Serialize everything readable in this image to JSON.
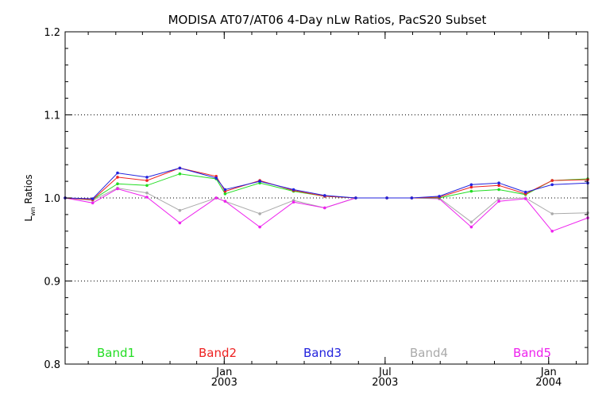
{
  "chart_data": {
    "type": "line",
    "title": "MODISA AT07/AT06 4-Day nLw Ratios, PacS20 Subset",
    "ylabel": "Lwn Ratios",
    "ylabel_main": "L",
    "ylabel_sub": "wn",
    "ylabel_rest": " Ratios",
    "xlabel": "",
    "ylim": [
      0.8,
      1.2
    ],
    "xlim": [
      "2002-07-06",
      "2004-02-14"
    ],
    "grid": "dotted horizontal",
    "y_ticks": [
      "0.8",
      "0.9",
      "1.0",
      "1.1",
      "1.2"
    ],
    "y_tick_values": [
      0.8,
      0.9,
      1.0,
      1.1,
      1.2
    ],
    "x_ticks": [
      {
        "date": "2003-01-01",
        "month": "Jan",
        "year": "2003"
      },
      {
        "date": "2003-07-01",
        "month": "Jul",
        "year": "2003"
      },
      {
        "date": "2004-01-01",
        "month": "Jan",
        "year": "2004"
      }
    ],
    "x": [
      "2002-07-06",
      "2002-08-06",
      "2002-09-03",
      "2002-10-06",
      "2002-11-12",
      "2002-12-23",
      "2003-01-02",
      "2003-02-10",
      "2003-03-20",
      "2003-04-24",
      "2003-05-29",
      "2003-07-03",
      "2003-07-31",
      "2003-08-31",
      "2003-10-06",
      "2003-11-06",
      "2003-12-06",
      "2004-01-05",
      "2004-02-14"
    ],
    "series": [
      {
        "name": "Band1",
        "color": "#22dd22",
        "values": [
          1.0,
          0.998,
          1.017,
          1.015,
          1.029,
          1.023,
          1.005,
          1.018,
          1.008,
          1.002,
          1.0,
          1.0,
          1.0,
          1.0,
          1.008,
          1.01,
          1.004,
          1.021,
          1.023
        ]
      },
      {
        "name": "Band2",
        "color": "#ee2222",
        "values": [
          1.0,
          0.998,
          1.025,
          1.021,
          1.036,
          1.026,
          1.008,
          1.021,
          1.009,
          1.002,
          1.0,
          1.0,
          1.0,
          1.001,
          1.013,
          1.015,
          1.005,
          1.021,
          1.022
        ]
      },
      {
        "name": "Band3",
        "color": "#2222dd",
        "values": [
          1.0,
          0.999,
          1.03,
          1.025,
          1.036,
          1.024,
          1.01,
          1.02,
          1.01,
          1.003,
          1.0,
          1.0,
          1.0,
          1.002,
          1.016,
          1.018,
          1.007,
          1.016,
          1.018
        ]
      },
      {
        "name": "Band4",
        "color": "#aaaaaa",
        "values": [
          1.0,
          0.997,
          1.012,
          1.006,
          0.985,
          1.0,
          0.996,
          0.981,
          0.997,
          0.988,
          1.0,
          1.0,
          1.0,
          1.0,
          0.971,
          0.999,
          1.0,
          0.981,
          0.982
        ]
      },
      {
        "name": "Band5",
        "color": "#ee22ee",
        "values": [
          1.0,
          0.994,
          1.011,
          1.001,
          0.97,
          1.0,
          0.996,
          0.965,
          0.995,
          0.988,
          1.0,
          1.0,
          1.0,
          0.999,
          0.965,
          0.996,
          0.999,
          0.96,
          0.976
        ]
      }
    ],
    "legend_placement": "bottom, inside plot"
  }
}
